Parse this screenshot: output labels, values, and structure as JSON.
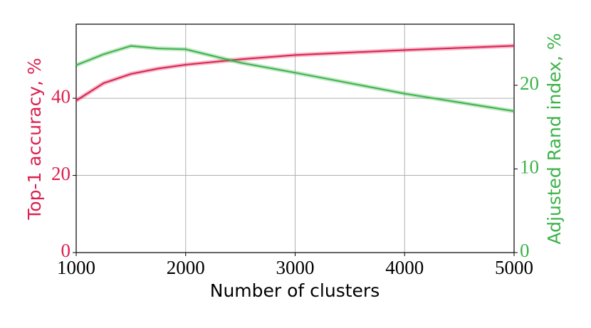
{
  "chart_data": {
    "type": "line",
    "x_label": "Number of clusters",
    "y_label": "Top-1 accuracy, %",
    "y2_label": "Adjusted Rand index, %",
    "x": [
      1000,
      1250,
      1500,
      1750,
      2000,
      2500,
      3000,
      4000,
      5000
    ],
    "series": [
      {
        "name": "Top-1 accuracy",
        "color": "#dc1f4e",
        "values": [
          39.4,
          43.9,
          46.3,
          47.7,
          48.7,
          50.1,
          51.2,
          52.5,
          53.6
        ]
      },
      {
        "name": "Adjusted Rand index",
        "color": "#3cb34a",
        "axis": "y2",
        "values": [
          22.4,
          23.7,
          24.7,
          24.4,
          24.3,
          22.7,
          21.5,
          19.0,
          16.9
        ]
      }
    ],
    "xlim": [
      1000,
      5000
    ],
    "xticks": [
      1000,
      2000,
      3000,
      4000,
      5000
    ],
    "ylim": [
      0,
      59.2
    ],
    "yticks": [
      0,
      20,
      40
    ],
    "y2lim": [
      0,
      27.3
    ],
    "y2ticks": [
      0,
      10,
      20
    ],
    "grid": true
  }
}
